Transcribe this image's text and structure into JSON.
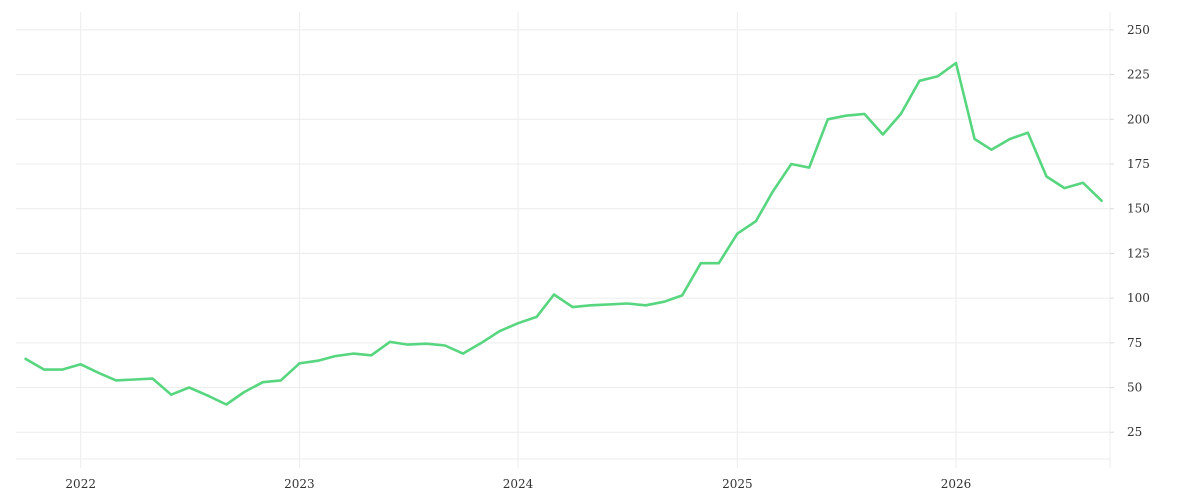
{
  "chart_data": {
    "type": "line",
    "title": "",
    "xlabel": "",
    "ylabel": "",
    "grid": true,
    "y_axis_side": "right",
    "colors": {
      "line": "#57d67f",
      "grid": "#ececec",
      "text": "#333333"
    },
    "xlim": [
      "2021-09-15",
      "2026-09-15"
    ],
    "ylim": [
      5,
      260
    ],
    "x_ticks": [
      {
        "value": "2022-01-01",
        "label": "2022"
      },
      {
        "value": "2023-01-01",
        "label": "2023"
      },
      {
        "value": "2024-01-01",
        "label": "2024"
      },
      {
        "value": "2025-01-01",
        "label": "2025"
      },
      {
        "value": "2026-01-01",
        "label": "2026"
      }
    ],
    "y_ticks": [
      25,
      50,
      75,
      100,
      125,
      150,
      175,
      200,
      225,
      250
    ],
    "series": [
      {
        "x": [
          "2021-10-01",
          "2021-11-01",
          "2021-12-01",
          "2022-01-01",
          "2022-02-01",
          "2022-03-01",
          "2022-04-01",
          "2022-05-01",
          "2022-06-01",
          "2022-07-01",
          "2022-08-01",
          "2022-09-01",
          "2022-10-01",
          "2022-11-01",
          "2022-12-01",
          "2023-01-01",
          "2023-02-01",
          "2023-03-01",
          "2023-04-01",
          "2023-05-01",
          "2023-06-01",
          "2023-07-01",
          "2023-08-01",
          "2023-09-01",
          "2023-10-01",
          "2023-11-01",
          "2023-12-01",
          "2024-01-01",
          "2024-02-01",
          "2024-03-01",
          "2024-04-01",
          "2024-05-01",
          "2024-06-01",
          "2024-07-01",
          "2024-08-01",
          "2024-09-01",
          "2024-10-01",
          "2024-11-01",
          "2024-12-01",
          "2025-01-01",
          "2025-02-01",
          "2025-03-01",
          "2025-04-01",
          "2025-05-01",
          "2025-06-01",
          "2025-07-01",
          "2025-08-01",
          "2025-09-01",
          "2025-10-01",
          "2025-11-01",
          "2025-12-01",
          "2026-01-01",
          "2026-02-01",
          "2026-03-01",
          "2026-04-01",
          "2026-05-01",
          "2026-06-01",
          "2026-07-01",
          "2026-08-01",
          "2026-09-01"
        ],
        "y": [
          66,
          60,
          60,
          63,
          58,
          54,
          54.5,
          55,
          46,
          50,
          45.5,
          40.5,
          47.5,
          53,
          54,
          63.5,
          65,
          67.5,
          69,
          68,
          75.5,
          74,
          74.5,
          73.5,
          69,
          75,
          81.5,
          86,
          89.5,
          102,
          95,
          96,
          96.5,
          97,
          96,
          98,
          101.5,
          119.5,
          119.5,
          136,
          143,
          159.5,
          175,
          173,
          200,
          202,
          203,
          191.5,
          203,
          221.5,
          224,
          231.5,
          189,
          183,
          189,
          192.5,
          168,
          161.5,
          164.5,
          154.5
        ]
      }
    ]
  }
}
